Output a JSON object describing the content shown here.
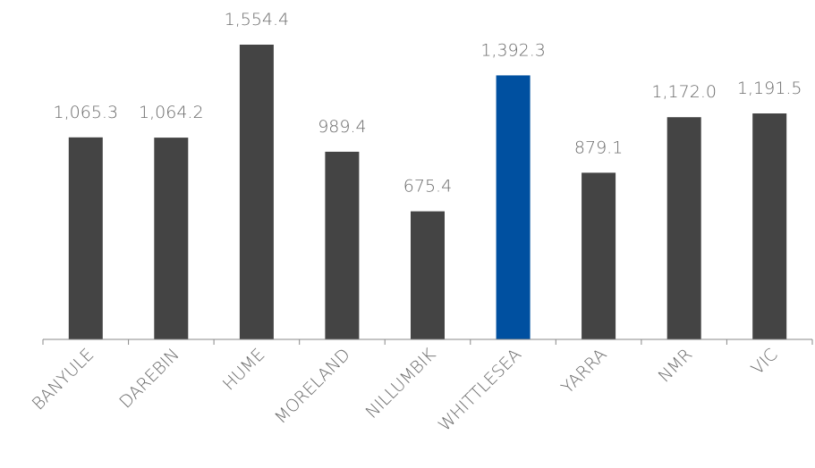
{
  "chart_data": {
    "type": "bar",
    "title": "",
    "xlabel": "",
    "ylabel": "",
    "categories": [
      "BANYULE",
      "DAREBIN",
      "HUME",
      "MORELAND",
      "NILLUMBIK",
      "WHITTLESEA",
      "YARRA",
      "NMR",
      "VIC"
    ],
    "values": [
      1065.3,
      1064.2,
      1554.4,
      989.4,
      675.4,
      1392.3,
      879.1,
      1172.0,
      1191.5
    ],
    "value_labels": [
      "1,065.3",
      "1,064.2",
      "1,554.4",
      "989.4",
      "675.4",
      "1,392.3",
      "879.1",
      "1,172.0",
      "1,191.5"
    ],
    "highlight_category": "WHITTLESEA",
    "ylim": [
      0,
      1554.4
    ],
    "grid": false,
    "legend": "none",
    "colors": {
      "bar": "#444444",
      "highlight": "#0050a0",
      "axis": "#888888",
      "label": "#6b6b6b"
    }
  }
}
